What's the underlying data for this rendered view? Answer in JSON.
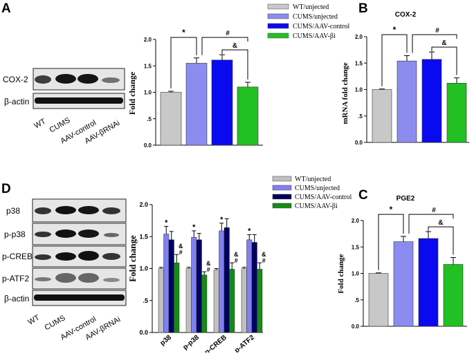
{
  "colors": {
    "wt": "#c8c8c8",
    "cums": "#8c8cf0",
    "aav_control": "#0a0af0",
    "aav_bi": "#22c022",
    "d_wt": "#c0c0c0",
    "d_cums": "#8080ee",
    "d_aav_control": "#000060",
    "d_aav_bi": "#168a16"
  },
  "panels": {
    "a": "A",
    "b": "B",
    "c": "C",
    "d": "D"
  },
  "blot_a": {
    "rows": [
      "COX-2",
      "β-actin"
    ],
    "lanes": [
      "WT",
      "CUMS",
      "AAV-control",
      "AAV-βRNAi"
    ]
  },
  "blot_d": {
    "rows": [
      "p38",
      "p-p38",
      "p-CREB",
      "p-ATF2",
      "β-actin"
    ],
    "lanes": [
      "WT",
      "CUMS",
      "AAV-control",
      "AAV-βRNAi"
    ]
  },
  "chart_data": [
    {
      "id": "A",
      "type": "bar",
      "title": "",
      "xlabel": "",
      "ylabel": "Fold change",
      "ylim": [
        0,
        2.0
      ],
      "yticks": [
        "0.0",
        ".5",
        "1.0",
        "1.5",
        "2.0"
      ],
      "categories": [
        "WT/unjected",
        "CUMS/unjected",
        "CUMS/AAV-control",
        "CUMS/AAV-βi"
      ],
      "values": [
        1.0,
        1.55,
        1.61,
        1.1
      ],
      "errors": [
        0.02,
        0.1,
        0.1,
        0.09
      ],
      "annotations": [
        "*",
        "#",
        "&"
      ],
      "legend": [
        "WT/unjected",
        "CUMS/unjected",
        "CUMS/AAV-control",
        "CUMS/AAV-βi"
      ]
    },
    {
      "id": "B",
      "type": "bar",
      "title": "COX-2",
      "xlabel": "",
      "ylabel": "mRNA fold change",
      "ylim": [
        0,
        2.0
      ],
      "yticks": [
        "0.0",
        ".5",
        "1.0",
        "1.5",
        "2.0"
      ],
      "categories": [
        "WT/unjected",
        "CUMS/unjected",
        "CUMS/AAV-control",
        "CUMS/AAV-βi"
      ],
      "values": [
        1.0,
        1.54,
        1.57,
        1.12
      ],
      "errors": [
        0.01,
        0.1,
        0.14,
        0.1
      ],
      "annotations": [
        "*",
        "#",
        "&"
      ]
    },
    {
      "id": "C",
      "type": "bar",
      "title": "PGE2",
      "xlabel": "",
      "ylabel": "Fold change",
      "ylim": [
        0,
        2.0
      ],
      "yticks": [
        "0.0",
        ".5",
        "1.0",
        "1.5",
        "2.0"
      ],
      "categories": [
        "WT/unjected",
        "CUMS/unjected",
        "CUMS/AAV-control",
        "CUMS/AAV-βi"
      ],
      "values": [
        1.0,
        1.6,
        1.66,
        1.17
      ],
      "errors": [
        0.01,
        0.1,
        0.13,
        0.13
      ],
      "annotations": [
        "*",
        "#",
        "&"
      ]
    },
    {
      "id": "D",
      "type": "bar",
      "title": "",
      "xlabel": "",
      "ylabel": "Fold change",
      "ylim": [
        0,
        2.0
      ],
      "yticks": [
        "0.0",
        ".5",
        "1.0",
        "1.5",
        "2.0"
      ],
      "categories": [
        "p38",
        "p-p38",
        "p-CREB",
        "p-ATF2"
      ],
      "series": [
        {
          "name": "WT/unjected",
          "values": [
            1.0,
            1.0,
            0.98,
            1.0
          ],
          "errors": [
            0.02,
            0.02,
            0.02,
            0.02
          ]
        },
        {
          "name": "CUMS/unjected",
          "values": [
            1.54,
            1.49,
            1.59,
            1.45
          ],
          "errors": [
            0.12,
            0.1,
            0.12,
            0.08
          ]
        },
        {
          "name": "CUMS/AAV-control",
          "values": [
            1.45,
            1.45,
            1.64,
            1.41
          ],
          "errors": [
            0.13,
            0.1,
            0.14,
            0.12
          ]
        },
        {
          "name": "CUMS/AAV-βi",
          "values": [
            1.09,
            0.9,
            0.99,
            0.99
          ],
          "errors": [
            0.13,
            0.05,
            0.1,
            0.1
          ]
        }
      ],
      "marks": {
        "cums": "*",
        "bi_top": "&",
        "bi_bottom": "#"
      },
      "legend": [
        "WT/unjected",
        "CUMS/unjected",
        "CUMS/AAV-control",
        "CUMS/AAV-βi"
      ]
    }
  ]
}
